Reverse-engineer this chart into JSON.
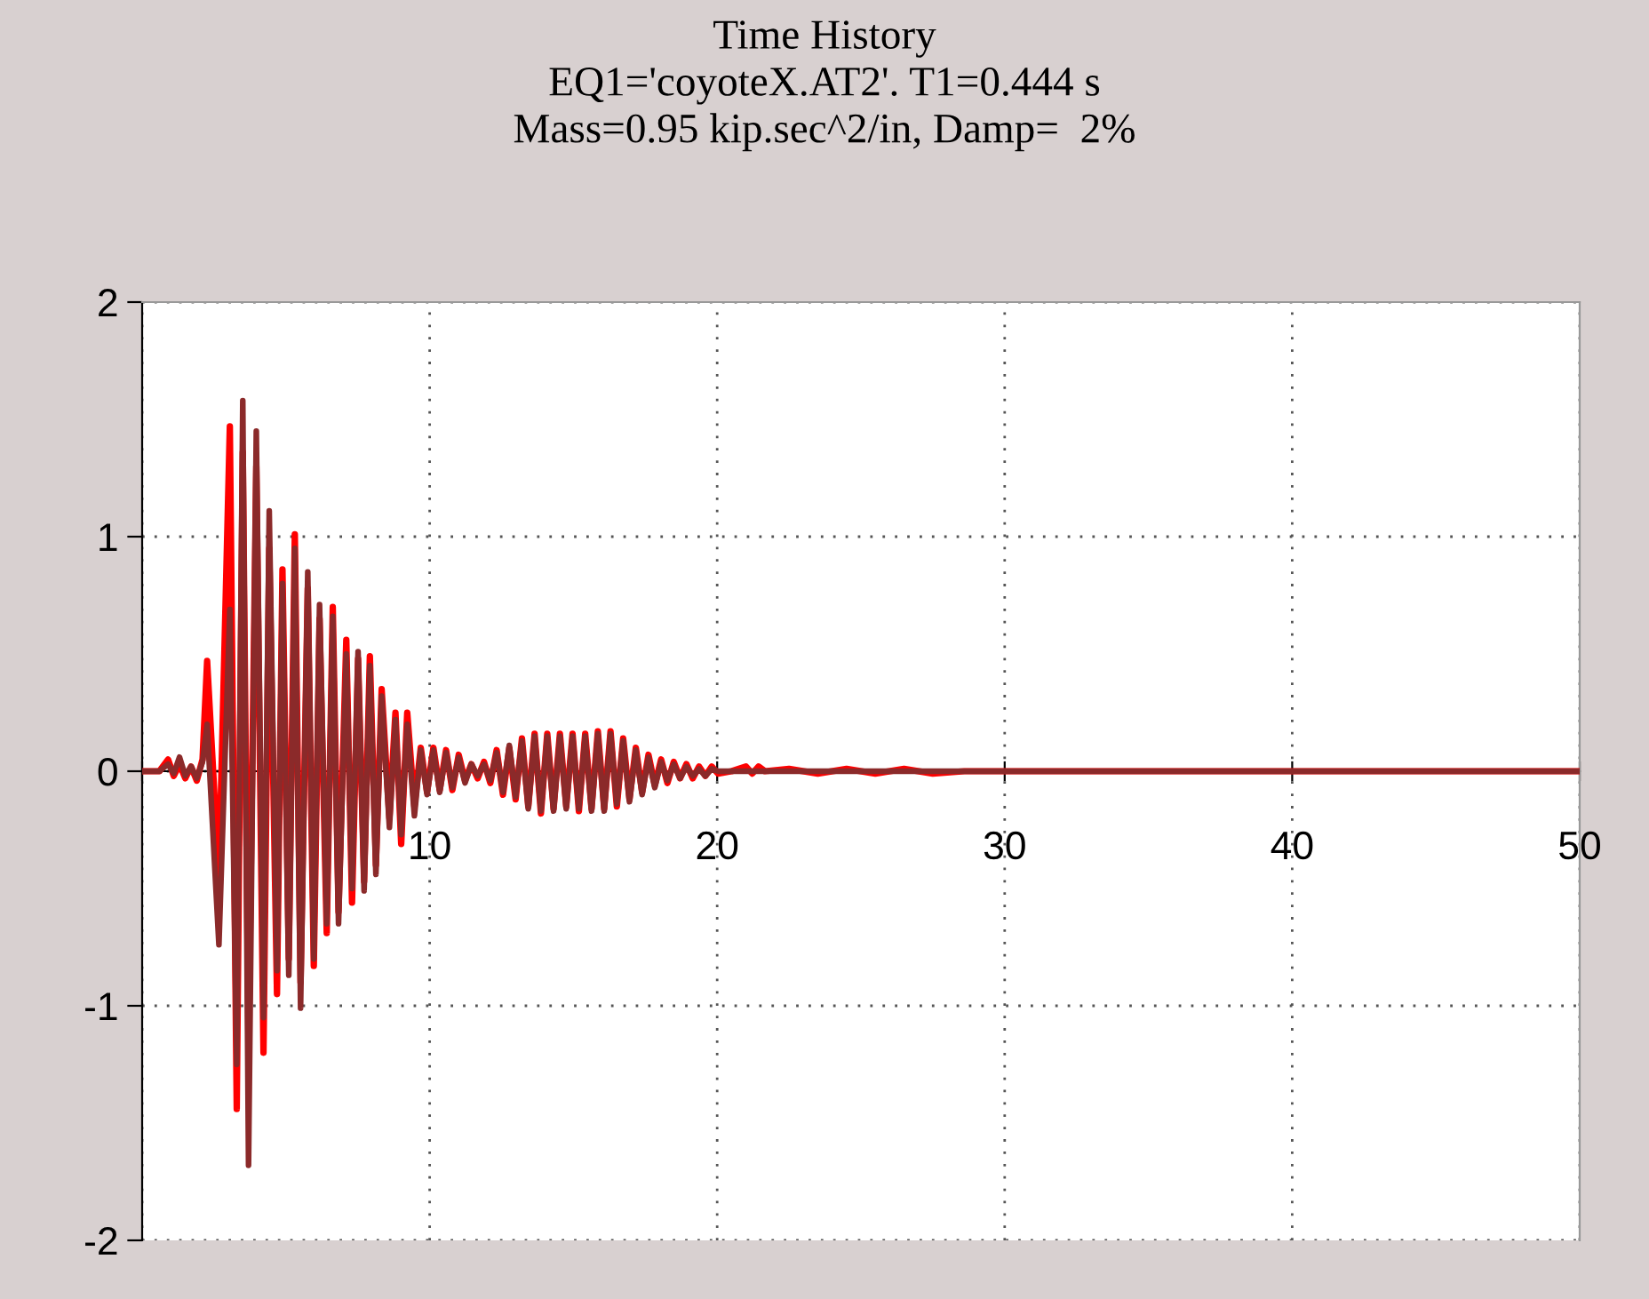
{
  "chart_data": {
    "type": "line",
    "title": "Time History\nEQ1='coyoteX.AT2'. T1=0.444 s\nMass=0.95 kip.sec^2/in, Damp=  2%",
    "xlim": [
      0,
      50
    ],
    "ylim": [
      -2,
      2
    ],
    "xticks": [
      {
        "value": 0,
        "label": null
      },
      10,
      20,
      30,
      40,
      50
    ],
    "yticks": [
      -2,
      -1,
      0,
      1,
      2
    ],
    "grid": true,
    "marker": "none",
    "line_style": "solid",
    "series": [
      {
        "color": "#ff0000",
        "x": [
          0,
          0.6,
          0.9,
          1.1,
          1.3,
          1.5,
          1.7,
          1.9,
          2.1,
          2.26,
          2.67,
          3.05,
          3.29,
          3.5,
          3.7,
          3.97,
          4.22,
          4.42,
          4.69,
          4.88,
          5.1,
          5.31,
          5.51,
          5.76,
          5.97,
          6.17,
          6.42,
          6.63,
          6.83,
          7.1,
          7.3,
          7.51,
          7.72,
          7.92,
          8.13,
          8.33,
          8.6,
          8.81,
          9.01,
          9.22,
          9.47,
          9.69,
          9.91,
          10.13,
          10.35,
          10.57,
          10.79,
          11.01,
          11.23,
          11.45,
          11.67,
          11.89,
          12.11,
          12.33,
          12.55,
          12.77,
          12.99,
          13.21,
          13.43,
          13.65,
          13.87,
          14.09,
          14.31,
          14.53,
          14.75,
          14.97,
          15.19,
          15.41,
          15.63,
          15.85,
          16.07,
          16.29,
          16.51,
          16.73,
          16.95,
          17.17,
          17.39,
          17.61,
          17.83,
          18.05,
          18.27,
          18.49,
          18.71,
          18.93,
          19.15,
          19.37,
          19.59,
          19.81,
          20.03,
          20.5,
          21,
          21.22,
          21.44,
          21.66,
          22.5,
          23.5,
          24.5,
          25.5,
          26.5,
          27.5,
          28.6,
          50
        ],
        "values": [
          0,
          0,
          0.05,
          -0.02,
          0.03,
          -0.03,
          0.02,
          -0.04,
          0.05,
          0.47,
          -0.45,
          1.47,
          -1.44,
          1.36,
          -1.16,
          1.3,
          -1.2,
          0.95,
          -0.95,
          0.86,
          -0.8,
          1.01,
          -0.9,
          0.78,
          -0.83,
          0.65,
          -0.69,
          0.7,
          -0.6,
          0.56,
          -0.56,
          0.48,
          -0.47,
          0.49,
          -0.4,
          0.35,
          -0.2,
          0.25,
          -0.31,
          0.25,
          -0.15,
          0.1,
          -0.09,
          0.1,
          -0.08,
          0.09,
          -0.08,
          0.07,
          -0.04,
          0.03,
          -0.03,
          0.04,
          -0.05,
          0.09,
          -0.1,
          0.1,
          -0.12,
          0.14,
          -0.15,
          0.16,
          -0.18,
          0.16,
          -0.16,
          0.16,
          -0.15,
          0.16,
          -0.17,
          0.16,
          -0.16,
          0.17,
          -0.16,
          0.17,
          -0.15,
          0.14,
          -0.12,
          0.1,
          -0.09,
          0.07,
          -0.06,
          0.05,
          -0.05,
          0.04,
          -0.03,
          0.03,
          -0.03,
          0.02,
          -0.02,
          0.02,
          -0.01,
          0,
          0.02,
          -0.01,
          0.02,
          0,
          0.01,
          -0.01,
          0.01,
          -0.01,
          0.01,
          -0.01,
          0,
          0
        ]
      },
      {
        "color": "#8b2a2a",
        "x": [
          0,
          0.6,
          0.9,
          1.1,
          1.3,
          1.5,
          1.7,
          1.9,
          2.1,
          2.26,
          2.67,
          3.05,
          3.29,
          3.5,
          3.7,
          3.97,
          4.22,
          4.42,
          4.69,
          4.88,
          5.1,
          5.31,
          5.51,
          5.76,
          5.97,
          6.17,
          6.42,
          6.63,
          6.83,
          7.1,
          7.3,
          7.51,
          7.72,
          7.92,
          8.13,
          8.33,
          8.6,
          8.81,
          9.01,
          9.22,
          9.47,
          9.69,
          9.91,
          10.13,
          10.35,
          10.57,
          10.79,
          11.01,
          11.23,
          11.45,
          11.67,
          11.89,
          12.11,
          12.33,
          12.55,
          12.77,
          12.99,
          13.21,
          13.43,
          13.65,
          13.87,
          14.09,
          14.31,
          14.53,
          14.75,
          14.97,
          15.19,
          15.41,
          15.63,
          15.85,
          16.07,
          16.29,
          16.51,
          16.73,
          16.95,
          17.17,
          17.39,
          17.61,
          17.83,
          18.05,
          18.27,
          18.49,
          18.71,
          18.93,
          19.15,
          19.37,
          19.59,
          19.81,
          20.03,
          50
        ],
        "values": [
          0,
          0,
          0.03,
          -0.01,
          0.06,
          -0.02,
          0.02,
          -0.03,
          0.04,
          0.2,
          -0.74,
          0.69,
          -1.25,
          1.58,
          -1.68,
          1.45,
          -1.05,
          1.11,
          -0.85,
          0.8,
          -0.87,
          0.95,
          -1.01,
          0.85,
          -0.8,
          0.71,
          -0.65,
          0.66,
          -0.65,
          0.5,
          -0.5,
          0.51,
          -0.51,
          0.45,
          -0.44,
          0.32,
          -0.24,
          0.22,
          -0.27,
          0.2,
          -0.19,
          0.09,
          -0.1,
          0.09,
          -0.09,
          0.08,
          -0.07,
          0.06,
          -0.05,
          0.03,
          -0.02,
          0.03,
          -0.04,
          0.08,
          -0.09,
          0.11,
          -0.11,
          0.13,
          -0.16,
          0.15,
          -0.17,
          0.15,
          -0.17,
          0.15,
          -0.16,
          0.15,
          -0.16,
          0.15,
          -0.17,
          0.16,
          -0.17,
          0.16,
          -0.14,
          0.13,
          -0.13,
          0.09,
          -0.1,
          0.06,
          -0.07,
          0.04,
          -0.04,
          0.03,
          -0.03,
          0.02,
          -0.02,
          0.01,
          -0.02,
          0.01,
          0,
          0
        ]
      }
    ]
  }
}
